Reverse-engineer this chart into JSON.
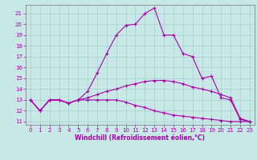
{
  "xlabel": "Windchill (Refroidissement éolien,°C)",
  "background_color": "#c8e8e8",
  "grid_color": "#a8cccc",
  "line_color": "#aa00aa",
  "x_ticks": [
    0,
    1,
    2,
    3,
    4,
    5,
    6,
    7,
    8,
    9,
    10,
    11,
    12,
    13,
    14,
    15,
    16,
    17,
    18,
    19,
    20,
    21,
    22,
    23
  ],
  "y_ticks": [
    11,
    12,
    13,
    14,
    15,
    16,
    17,
    18,
    19,
    20,
    21
  ],
  "xlim": [
    -0.5,
    23.5
  ],
  "ylim": [
    10.7,
    21.8
  ],
  "curve1_x": [
    0,
    1,
    2,
    3,
    4,
    5,
    6,
    7,
    8,
    9,
    10,
    11,
    12,
    13,
    14,
    15,
    16,
    17,
    18,
    19,
    20,
    21,
    22,
    23
  ],
  "curve1_y": [
    13.0,
    12.0,
    13.0,
    13.0,
    12.7,
    13.0,
    13.8,
    15.5,
    17.3,
    19.0,
    19.9,
    20.0,
    21.0,
    21.5,
    19.0,
    19.0,
    17.3,
    17.0,
    15.0,
    15.2,
    13.2,
    13.0,
    11.2,
    11.0
  ],
  "curve2_x": [
    0,
    1,
    2,
    3,
    4,
    5,
    6,
    7,
    8,
    9,
    10,
    11,
    12,
    13,
    14,
    15,
    16,
    17,
    18,
    19,
    20,
    21,
    22,
    23
  ],
  "curve2_y": [
    13.0,
    12.0,
    13.0,
    13.0,
    12.7,
    13.0,
    13.2,
    13.5,
    13.8,
    14.0,
    14.3,
    14.5,
    14.7,
    14.8,
    14.8,
    14.7,
    14.5,
    14.2,
    14.0,
    13.8,
    13.5,
    13.2,
    11.3,
    11.0
  ],
  "curve3_x": [
    0,
    1,
    2,
    3,
    4,
    5,
    6,
    7,
    8,
    9,
    10,
    11,
    12,
    13,
    14,
    15,
    16,
    17,
    18,
    19,
    20,
    21,
    22,
    23
  ],
  "curve3_y": [
    13.0,
    12.0,
    13.0,
    13.0,
    12.7,
    13.0,
    13.0,
    13.0,
    13.0,
    13.0,
    12.8,
    12.5,
    12.3,
    12.0,
    11.8,
    11.6,
    11.5,
    11.4,
    11.3,
    11.2,
    11.1,
    11.0,
    11.0,
    11.0
  ],
  "tick_fontsize": 5.0,
  "xlabel_fontsize": 5.5
}
